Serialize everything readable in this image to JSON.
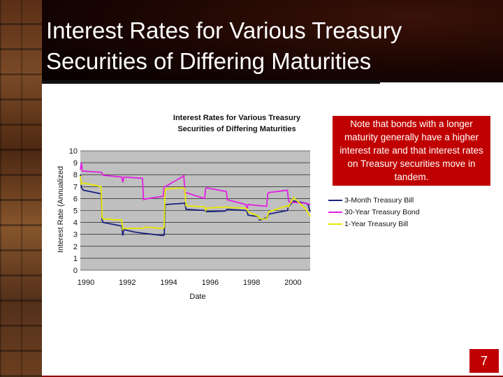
{
  "slide": {
    "title_line1": "Interest Rates for Various Treasury",
    "title_line2": "Securities of Differing Maturities",
    "page_number": "7"
  },
  "note": "Note that bonds with a longer maturity generally have a higher interest rate and that interest rates on Treasury securities move in tandem.",
  "chart_data": {
    "type": "line",
    "title": "Interest Rates for Various Treasury Securities of Differing Maturities",
    "xlabel": "Date",
    "ylabel": "Interest Rate (Annualized",
    "xlim": [
      1990,
      2001.1
    ],
    "ylim": [
      0,
      10
    ],
    "xticks": [
      1990,
      1992,
      1994,
      1996,
      1998,
      2000
    ],
    "yticks": [
      0,
      1,
      2,
      3,
      4,
      5,
      6,
      7,
      8,
      9,
      10
    ],
    "grid": "horizontal",
    "legend": "right",
    "series": [
      {
        "name": "3-Month Treasury Bill",
        "color": "#1a237e",
        "x": [
          1990,
          1990.05,
          1990.15,
          1991.0,
          1991.05,
          1991.1,
          1992.0,
          1992.05,
          1992.1,
          1992.6,
          1993.0,
          1993.5,
          1994.0,
          1994.05,
          1994.1,
          1995.0,
          1995.05,
          1995.1,
          1996.0,
          1996.05,
          1996.1,
          1997.0,
          1997.05,
          1997.1,
          1998.0,
          1998.05,
          1998.1,
          1998.6,
          1998.65,
          1999.0,
          1999.05,
          1999.1,
          2000.0,
          2000.05,
          2000.3,
          2000.6,
          2000.9,
          2001.0,
          2001.1
        ],
        "values": [
          8.0,
          6.9,
          6.7,
          6.4,
          4.2,
          4.0,
          3.7,
          2.9,
          3.4,
          3.2,
          3.1,
          3.0,
          2.9,
          2.95,
          5.5,
          5.6,
          5.65,
          5.1,
          5.0,
          4.95,
          4.9,
          4.95,
          5.05,
          5.1,
          5.0,
          4.95,
          4.6,
          4.5,
          4.2,
          4.4,
          4.5,
          4.7,
          5.0,
          5.3,
          5.8,
          5.7,
          5.6,
          5.5,
          4.9
        ]
      },
      {
        "name": "30-Year Treasury Bond",
        "color": "#e020e0",
        "x": [
          1990,
          1990.05,
          1990.1,
          1991.0,
          1991.05,
          1991.1,
          1992.0,
          1992.05,
          1992.1,
          1993.0,
          1993.05,
          1993.1,
          1994.0,
          1994.05,
          1994.1,
          1995.0,
          1995.05,
          1995.1,
          1996.0,
          1996.05,
          1996.1,
          1997.0,
          1997.05,
          1997.1,
          1998.0,
          1998.05,
          1998.1,
          1999.0,
          1999.05,
          1999.1,
          2000.0,
          2000.05,
          2000.1,
          2000.9,
          2001.1
        ],
        "values": [
          8.4,
          9.0,
          8.3,
          8.2,
          8.15,
          7.95,
          7.8,
          7.35,
          7.8,
          7.7,
          5.9,
          5.95,
          6.2,
          7.0,
          7.0,
          7.9,
          6.5,
          6.5,
          6.0,
          6.85,
          6.9,
          6.6,
          6.6,
          5.9,
          5.5,
          5.15,
          5.5,
          5.35,
          6.4,
          6.5,
          6.7,
          5.9,
          5.7,
          5.6,
          5.5
        ]
      },
      {
        "name": "1-Year Treasury Bill",
        "color": "#e8e800",
        "x": [
          1990,
          1990.05,
          1990.15,
          1991.0,
          1991.05,
          1991.1,
          1992.0,
          1992.05,
          1992.1,
          1993.0,
          1993.05,
          1993.1,
          1994.0,
          1994.05,
          1994.1,
          1995.0,
          1995.05,
          1995.1,
          1996.0,
          1996.05,
          1996.1,
          1997.0,
          1997.05,
          1997.1,
          1998.0,
          1998.05,
          1998.1,
          1998.6,
          1998.65,
          1999.0,
          1999.05,
          1999.1,
          2000.0,
          2000.05,
          2000.3,
          2000.9,
          2001.1
        ],
        "values": [
          7.9,
          7.2,
          7.3,
          7.0,
          4.4,
          4.3,
          4.2,
          3.4,
          3.5,
          3.5,
          3.5,
          3.6,
          3.5,
          3.6,
          6.8,
          6.9,
          6.75,
          5.4,
          5.3,
          5.0,
          5.2,
          5.3,
          5.3,
          5.25,
          5.2,
          5.1,
          4.9,
          4.5,
          4.3,
          4.3,
          4.6,
          4.9,
          5.4,
          5.3,
          6.1,
          5.1,
          4.5
        ]
      }
    ]
  }
}
